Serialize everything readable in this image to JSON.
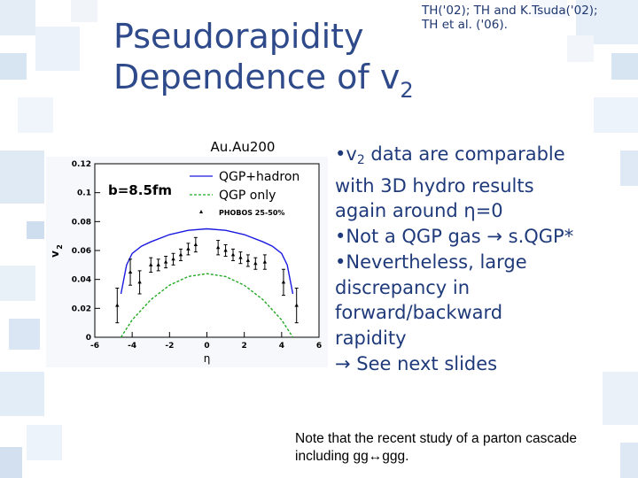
{
  "colors": {
    "title": "#2f4a8a",
    "body_text": "#1f3a7a",
    "hydro_line": "#1a1ae0",
    "qgp_line": "#22aa22"
  },
  "citation": {
    "line1": "TH('02); TH and K.Tsuda('02);",
    "line2": "TH et al. ('06)."
  },
  "title": {
    "line1": "Pseudorapidity",
    "line2_prefix": "Dependence of v",
    "line2_sub": "2"
  },
  "chart_data": {
    "type": "line",
    "title": "Au.Au200",
    "annotation": "b=8.5fm",
    "xlabel": "η",
    "ylabel": "v",
    "ylabel_sub": "2",
    "xlim": [
      -6,
      6
    ],
    "ylim": [
      0,
      0.12
    ],
    "x_ticks": [
      "-6",
      "-4",
      "-2",
      "0",
      "2",
      "4",
      "6"
    ],
    "y_ticks": [
      "0",
      "0.02",
      "0.04",
      "0.06",
      "0.08",
      "0.1",
      "0.12"
    ],
    "legend": {
      "placement": "top-right",
      "entries": [
        "QGP+hadron",
        "QGP only",
        "PHOBOS 25-50%"
      ]
    },
    "series": [
      {
        "name": "QGP+hadron",
        "style": "solid",
        "x": [
          -4.6,
          -4.3,
          -4.0,
          -3.5,
          -3.0,
          -2.0,
          -1.0,
          0,
          1.0,
          2.0,
          3.0,
          3.5,
          4.0,
          4.3,
          4.6
        ],
        "y": [
          0.03,
          0.05,
          0.058,
          0.063,
          0.066,
          0.071,
          0.074,
          0.075,
          0.074,
          0.071,
          0.066,
          0.063,
          0.058,
          0.05,
          0.03
        ]
      },
      {
        "name": "QGP only",
        "style": "dashed",
        "x": [
          -4.6,
          -4.0,
          -3.0,
          -2.0,
          -1.0,
          0,
          1.0,
          2.0,
          3.0,
          4.0,
          4.6
        ],
        "y": [
          0.0,
          0.012,
          0.026,
          0.036,
          0.042,
          0.044,
          0.042,
          0.036,
          0.026,
          0.012,
          0.0
        ]
      },
      {
        "name": "PHOBOS 25-50%",
        "style": "points",
        "x": [
          -4.8,
          -4.1,
          -3.6,
          -3.0,
          -2.6,
          -2.2,
          -1.8,
          -1.4,
          -1.0,
          -0.6,
          0.6,
          1.0,
          1.4,
          1.8,
          2.2,
          2.6,
          3.1,
          4.1,
          4.8
        ],
        "y": [
          0.022,
          0.045,
          0.038,
          0.05,
          0.05,
          0.052,
          0.054,
          0.057,
          0.061,
          0.064,
          0.062,
          0.06,
          0.057,
          0.055,
          0.053,
          0.051,
          0.052,
          0.038,
          0.022
        ],
        "err": [
          0.012,
          0.009,
          0.008,
          0.005,
          0.004,
          0.004,
          0.004,
          0.004,
          0.004,
          0.005,
          0.005,
          0.004,
          0.004,
          0.004,
          0.004,
          0.004,
          0.005,
          0.009,
          0.012
        ]
      }
    ]
  },
  "bullets": [
    {
      "before": "•v",
      "sub": "2",
      "after": " data are comparable"
    },
    {
      "before": "with 3D hydro results",
      "sub": "",
      "after": ""
    },
    {
      "before": "again around η=0",
      "sub": "",
      "after": ""
    },
    {
      "before": "•Not a QGP gas → s.QGP*",
      "sub": "",
      "after": ""
    },
    {
      "before": "•Nevertheless, large",
      "sub": "",
      "after": ""
    },
    {
      "before": "discrepancy in",
      "sub": "",
      "after": ""
    },
    {
      "before": "forward/backward",
      "sub": "",
      "after": ""
    },
    {
      "before": "rapidity",
      "sub": "",
      "after": ""
    },
    {
      "before": "→ See next slides",
      "sub": "",
      "after": ""
    }
  ],
  "note": {
    "line1": "Note that the recent study of a parton cascade",
    "line2": "including gg↔ggg."
  }
}
